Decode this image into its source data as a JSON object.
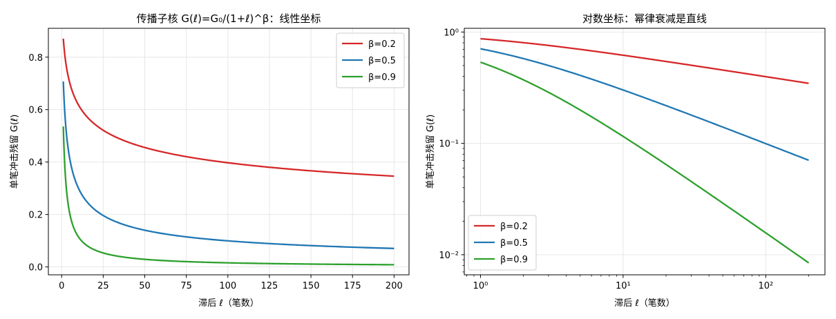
{
  "chart_data": [
    {
      "type": "line",
      "title": "传播子核 G(ℓ)=G₀/(1+ℓ)^β：线性坐标",
      "xlabel": "滞后 ℓ（笔数）",
      "ylabel": "单笔冲击残留 G(ℓ)",
      "xscale": "linear",
      "yscale": "linear",
      "xlim": [
        -8,
        209
      ],
      "ylim": [
        -0.03,
        0.91
      ],
      "xticks": [
        0,
        25,
        50,
        75,
        100,
        125,
        150,
        175,
        200
      ],
      "xtick_labels": [
        "0",
        "25",
        "50",
        "75",
        "100",
        "125",
        "150",
        "175",
        "200"
      ],
      "yticks": [
        0.0,
        0.2,
        0.4,
        0.6,
        0.8
      ],
      "ytick_labels": [
        "0.0",
        "0.2",
        "0.4",
        "0.6",
        "0.8"
      ],
      "grid": true,
      "legend_position": "top-right",
      "x_domain": [
        1,
        200
      ],
      "series": [
        {
          "name": "β=0.2",
          "beta": 0.2,
          "color": "#d62728"
        },
        {
          "name": "β=0.5",
          "beta": 0.5,
          "color": "#1f77b4"
        },
        {
          "name": "β=0.9",
          "beta": 0.9,
          "color": "#2ca02c"
        }
      ]
    },
    {
      "type": "line",
      "title": "对数坐标：幂律衰减是直线",
      "xlabel": "滞后 ℓ（笔数）",
      "ylabel": "单笔冲击残留 G(ℓ)",
      "xscale": "log",
      "yscale": "log",
      "xlim": [
        0.77,
        260
      ],
      "ylim": [
        0.0066,
        1.08
      ],
      "xticks": [
        1,
        10,
        100
      ],
      "xtick_labels": [
        "10⁰",
        "10¹",
        "10²"
      ],
      "yticks": [
        0.01,
        0.1,
        1
      ],
      "ytick_labels": [
        "10⁻²",
        "10⁻¹",
        "10⁰"
      ],
      "grid": true,
      "legend_position": "bottom-left",
      "x_domain": [
        1,
        200
      ],
      "series": [
        {
          "name": "β=0.2",
          "beta": 0.2,
          "color": "#d62728"
        },
        {
          "name": "β=0.5",
          "beta": 0.5,
          "color": "#1f77b4"
        },
        {
          "name": "β=0.9",
          "beta": 0.9,
          "color": "#2ca02c"
        }
      ]
    }
  ]
}
